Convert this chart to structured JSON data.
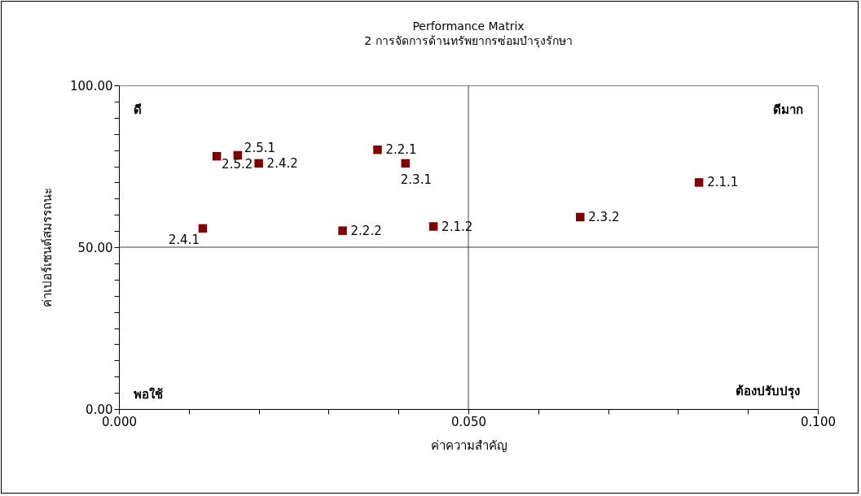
{
  "chart_data": {
    "type": "scatter",
    "title": "Performance Matrix",
    "subtitle": "2 การจัดการด้านทรัพยากรซ่อมบำรุงรักษา",
    "xlabel": "ค่าความสำคัญ",
    "ylabel": "ค่าเปอร์เซนต์สมรรถนะ",
    "x": [
      0.017,
      0.014,
      0.02,
      0.012,
      0.037,
      0.032,
      0.041,
      0.045,
      0.066,
      0.083
    ],
    "series": [
      {
        "color": "#800000",
        "values": [
          78.4,
          78.1,
          75.9,
          55.8,
          80.1,
          55.1,
          75.9,
          56.4,
          59.3,
          70.0
        ]
      }
    ],
    "marker": "square",
    "grid": false,
    "legend": false,
    "xlim": [
      0,
      0.1
    ],
    "ylim": [
      0,
      100
    ],
    "xticks": [
      {
        "value": 0,
        "label": "0.000"
      },
      {
        "value": 0.01,
        "label": null
      },
      {
        "value": 0.02,
        "label": null
      },
      {
        "value": 0.03,
        "label": null
      },
      {
        "value": 0.04,
        "label": null
      },
      {
        "value": 0.05,
        "label": "0.050"
      },
      {
        "value": 0.06,
        "label": null
      },
      {
        "value": 0.07,
        "label": null
      },
      {
        "value": 0.08,
        "label": null
      },
      {
        "value": 0.09,
        "label": null
      },
      {
        "value": 0.1,
        "label": "0.100"
      }
    ],
    "yticks": [
      {
        "value": 0,
        "label": "0.00"
      },
      {
        "value": 5,
        "label": null
      },
      {
        "value": 10,
        "label": null
      },
      {
        "value": 15,
        "label": null
      },
      {
        "value": 20,
        "label": null
      },
      {
        "value": 25,
        "label": null
      },
      {
        "value": 30,
        "label": null
      },
      {
        "value": 35,
        "label": null
      },
      {
        "value": 40,
        "label": null
      },
      {
        "value": 45,
        "label": null
      },
      {
        "value": 50,
        "label": "50.00"
      },
      {
        "value": 55,
        "label": null
      },
      {
        "value": 60,
        "label": null
      },
      {
        "value": 65,
        "label": null
      },
      {
        "value": 70,
        "label": null
      },
      {
        "value": 75,
        "label": null
      },
      {
        "value": 80,
        "label": null
      },
      {
        "value": 85,
        "label": null
      },
      {
        "value": 90,
        "label": null
      },
      {
        "value": 95,
        "label": null
      },
      {
        "value": 100,
        "label": "100.00"
      }
    ],
    "ref_lines": [
      {
        "axis": "x",
        "value": 0.05,
        "color": "#404040"
      },
      {
        "axis": "y",
        "value": 50,
        "color": "#404040"
      }
    ],
    "annotations": [
      {
        "text": "2.5.1",
        "x": 0.017,
        "y": 78.4
      },
      {
        "text": "2.5.2",
        "x": 0.014,
        "y": 78.1
      },
      {
        "text": "2.4.2",
        "x": 0.02,
        "y": 75.9
      },
      {
        "text": "2.4.1",
        "x": 0.012,
        "y": 55.8
      },
      {
        "text": "2.2.1",
        "x": 0.037,
        "y": 80.1
      },
      {
        "text": "2.2.2",
        "x": 0.032,
        "y": 55.1
      },
      {
        "text": "2.3.1",
        "x": 0.041,
        "y": 75.9
      },
      {
        "text": "2.1.2",
        "x": 0.045,
        "y": 56.4
      },
      {
        "text": "2.3.2",
        "x": 0.066,
        "y": 59.3
      },
      {
        "text": "2.1.1",
        "x": 0.083,
        "y": 70.0
      },
      "ดี",
      "ดีมาก",
      "พอใช้",
      "ต้องปรับปรุง"
    ]
  }
}
